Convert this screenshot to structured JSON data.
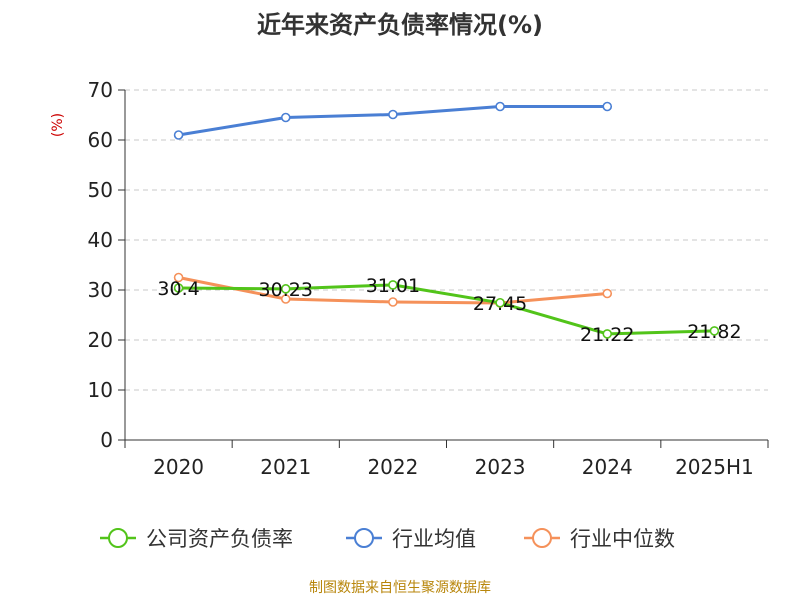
{
  "chart_data": {
    "type": "line",
    "title": "近年来资产负债率情况(%)",
    "ylabel": "(%)",
    "xlabel": "",
    "categories": [
      "2020",
      "2021",
      "2022",
      "2023",
      "2024",
      "2025H1"
    ],
    "ylim": [
      0,
      70
    ],
    "yticks": [
      0,
      10,
      20,
      30,
      40,
      50,
      60,
      70
    ],
    "grid": true,
    "legend_position": "bottom",
    "series": [
      {
        "name": "公司资产负债率",
        "color": "#52c41a",
        "values": [
          30.4,
          30.23,
          31.01,
          27.45,
          21.22,
          21.82
        ],
        "labels": [
          "30.4",
          "30.23",
          "31.01",
          "27.45",
          "21.22",
          "21.82"
        ]
      },
      {
        "name": "行业均值",
        "color": "#4a7fd4",
        "values": [
          61.0,
          64.5,
          65.1,
          66.7,
          66.7,
          null
        ]
      },
      {
        "name": "行业中位数",
        "color": "#f5915a",
        "values": [
          32.5,
          28.2,
          27.6,
          27.4,
          29.3,
          null
        ]
      }
    ],
    "source": "制图数据来自恒生聚源数据库"
  }
}
